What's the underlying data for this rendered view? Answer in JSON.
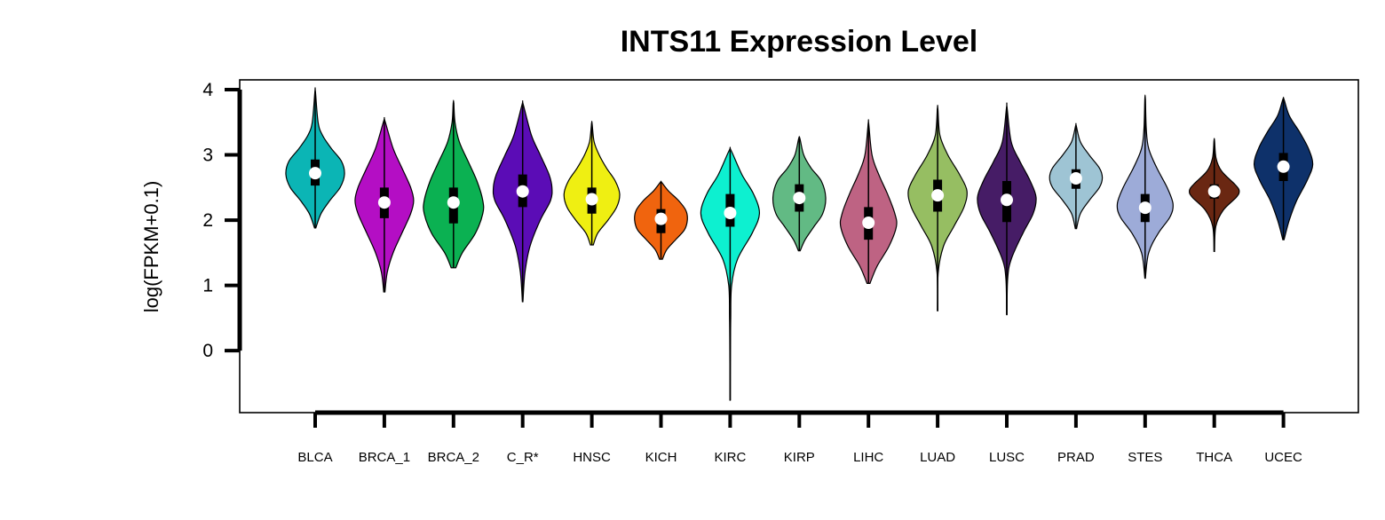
{
  "chart_data": {
    "type": "violin",
    "title": "INTS11 Expression Level",
    "ylabel": "log(FPKM+0.1)",
    "xlabel": "",
    "ylim": [
      -0.95,
      4.15
    ],
    "yticks": [
      0,
      1,
      2,
      3,
      4
    ],
    "legend": "none",
    "grid": false,
    "categories": [
      "BLCA",
      "BRCA_1",
      "BRCA_2",
      "C_R*",
      "HNSC",
      "KICH",
      "KIRC",
      "KIRP",
      "LIHC",
      "LUAD",
      "LUSC",
      "PRAD",
      "STES",
      "THCA",
      "UCEC"
    ],
    "colors": [
      "#0BB5B5",
      "#B40EC4",
      "#0BB152",
      "#5B0CB6",
      "#EFEF12",
      "#F0640E",
      "#0DF0D0",
      "#62BA84",
      "#BE6383",
      "#96BE62",
      "#461C66",
      "#9EC4D4",
      "#9DABD8",
      "#6A2712",
      "#0E316A"
    ],
    "series": [
      {
        "category": "BLCA",
        "min": 1.88,
        "max": 3.97,
        "median": 2.72,
        "q1": 2.53,
        "q3": 2.93,
        "shape": [
          [
            1.88,
            0.02
          ],
          [
            2.1,
            0.2
          ],
          [
            2.3,
            0.5
          ],
          [
            2.5,
            0.85
          ],
          [
            2.7,
            1.0
          ],
          [
            2.9,
            0.9
          ],
          [
            3.1,
            0.55
          ],
          [
            3.3,
            0.25
          ],
          [
            3.5,
            0.1
          ],
          [
            3.97,
            0.01
          ]
        ]
      },
      {
        "category": "BRCA_1",
        "min": 0.9,
        "max": 3.52,
        "median": 2.27,
        "q1": 2.03,
        "q3": 2.5,
        "shape": [
          [
            0.9,
            0.02
          ],
          [
            1.2,
            0.1
          ],
          [
            1.5,
            0.3
          ],
          [
            1.8,
            0.6
          ],
          [
            2.1,
            0.9
          ],
          [
            2.3,
            1.0
          ],
          [
            2.5,
            0.9
          ],
          [
            2.8,
            0.6
          ],
          [
            3.1,
            0.3
          ],
          [
            3.52,
            0.02
          ]
        ]
      },
      {
        "category": "BRCA_2",
        "min": 1.27,
        "max": 3.8,
        "median": 2.27,
        "q1": 1.95,
        "q3": 2.5,
        "shape": [
          [
            1.27,
            0.08
          ],
          [
            1.5,
            0.3
          ],
          [
            1.8,
            0.75
          ],
          [
            2.1,
            1.0
          ],
          [
            2.3,
            1.0
          ],
          [
            2.6,
            0.8
          ],
          [
            2.9,
            0.5
          ],
          [
            3.2,
            0.2
          ],
          [
            3.5,
            0.05
          ],
          [
            3.8,
            0.01
          ]
        ]
      },
      {
        "category": "C_R*",
        "min": 0.75,
        "max": 3.77,
        "median": 2.44,
        "q1": 2.2,
        "q3": 2.7,
        "shape": [
          [
            0.75,
            0.01
          ],
          [
            1.2,
            0.08
          ],
          [
            1.6,
            0.25
          ],
          [
            2.0,
            0.6
          ],
          [
            2.3,
            0.95
          ],
          [
            2.5,
            1.0
          ],
          [
            2.7,
            0.9
          ],
          [
            3.0,
            0.6
          ],
          [
            3.3,
            0.3
          ],
          [
            3.77,
            0.02
          ]
        ]
      },
      {
        "category": "HNSC",
        "min": 1.62,
        "max": 3.48,
        "median": 2.32,
        "q1": 2.1,
        "q3": 2.5,
        "shape": [
          [
            1.62,
            0.05
          ],
          [
            1.8,
            0.2
          ],
          [
            2.0,
            0.55
          ],
          [
            2.2,
            0.85
          ],
          [
            2.4,
            0.95
          ],
          [
            2.6,
            0.8
          ],
          [
            2.8,
            0.5
          ],
          [
            3.0,
            0.25
          ],
          [
            3.2,
            0.08
          ],
          [
            3.48,
            0.01
          ]
        ]
      },
      {
        "category": "KICH",
        "min": 1.4,
        "max": 2.58,
        "median": 2.02,
        "q1": 1.8,
        "q3": 2.17,
        "shape": [
          [
            1.4,
            0.05
          ],
          [
            1.55,
            0.2
          ],
          [
            1.7,
            0.5
          ],
          [
            1.85,
            0.8
          ],
          [
            2.0,
            0.9
          ],
          [
            2.15,
            0.85
          ],
          [
            2.3,
            0.6
          ],
          [
            2.45,
            0.25
          ],
          [
            2.58,
            0.02
          ]
        ]
      },
      {
        "category": "KIRC",
        "min": -0.76,
        "max": 3.07,
        "median": 2.11,
        "q1": 1.9,
        "q3": 2.4,
        "shape": [
          [
            -0.76,
            0.005
          ],
          [
            -0.2,
            0.01
          ],
          [
            0.5,
            0.02
          ],
          [
            1.0,
            0.05
          ],
          [
            1.4,
            0.25
          ],
          [
            1.8,
            0.75
          ],
          [
            2.1,
            1.0
          ],
          [
            2.4,
            0.8
          ],
          [
            2.7,
            0.4
          ],
          [
            3.07,
            0.03
          ]
        ]
      },
      {
        "category": "KIRP",
        "min": 1.53,
        "max": 3.25,
        "median": 2.34,
        "q1": 2.13,
        "q3": 2.55,
        "shape": [
          [
            1.53,
            0.03
          ],
          [
            1.7,
            0.2
          ],
          [
            1.9,
            0.5
          ],
          [
            2.1,
            0.8
          ],
          [
            2.35,
            0.9
          ],
          [
            2.6,
            0.75
          ],
          [
            2.8,
            0.4
          ],
          [
            3.0,
            0.15
          ],
          [
            3.25,
            0.02
          ]
        ]
      },
      {
        "category": "LIHC",
        "min": 1.03,
        "max": 3.48,
        "median": 1.96,
        "q1": 1.7,
        "q3": 2.2,
        "shape": [
          [
            1.03,
            0.05
          ],
          [
            1.3,
            0.3
          ],
          [
            1.6,
            0.7
          ],
          [
            1.9,
            0.95
          ],
          [
            2.1,
            0.9
          ],
          [
            2.4,
            0.65
          ],
          [
            2.7,
            0.35
          ],
          [
            3.0,
            0.12
          ],
          [
            3.48,
            0.01
          ]
        ]
      },
      {
        "category": "LUAD",
        "min": 0.61,
        "max": 3.71,
        "median": 2.38,
        "q1": 2.13,
        "q3": 2.62,
        "shape": [
          [
            0.61,
            0.005
          ],
          [
            1.2,
            0.02
          ],
          [
            1.6,
            0.2
          ],
          [
            1.9,
            0.55
          ],
          [
            2.2,
            0.9
          ],
          [
            2.45,
            1.0
          ],
          [
            2.7,
            0.75
          ],
          [
            3.0,
            0.35
          ],
          [
            3.3,
            0.08
          ],
          [
            3.71,
            0.01
          ]
        ]
      },
      {
        "category": "LUSC",
        "min": 0.55,
        "max": 3.73,
        "median": 2.31,
        "q1": 1.97,
        "q3": 2.6,
        "shape": [
          [
            0.55,
            0.005
          ],
          [
            1.1,
            0.03
          ],
          [
            1.4,
            0.15
          ],
          [
            1.8,
            0.55
          ],
          [
            2.1,
            0.9
          ],
          [
            2.35,
            1.0
          ],
          [
            2.6,
            0.8
          ],
          [
            2.9,
            0.45
          ],
          [
            3.2,
            0.15
          ],
          [
            3.73,
            0.01
          ]
        ]
      },
      {
        "category": "PRAD",
        "min": 1.87,
        "max": 3.45,
        "median": 2.64,
        "q1": 2.48,
        "q3": 2.78,
        "shape": [
          [
            1.87,
            0.02
          ],
          [
            2.1,
            0.15
          ],
          [
            2.3,
            0.45
          ],
          [
            2.5,
            0.8
          ],
          [
            2.65,
            0.9
          ],
          [
            2.8,
            0.8
          ],
          [
            3.0,
            0.45
          ],
          [
            3.2,
            0.15
          ],
          [
            3.45,
            0.01
          ]
        ]
      },
      {
        "category": "STES",
        "min": 1.11,
        "max": 3.86,
        "median": 2.19,
        "q1": 1.97,
        "q3": 2.4,
        "shape": [
          [
            1.11,
            0.01
          ],
          [
            1.5,
            0.12
          ],
          [
            1.8,
            0.45
          ],
          [
            2.05,
            0.85
          ],
          [
            2.25,
            0.95
          ],
          [
            2.5,
            0.75
          ],
          [
            2.8,
            0.4
          ],
          [
            3.1,
            0.12
          ],
          [
            3.4,
            0.04
          ],
          [
            3.86,
            0.01
          ]
        ]
      },
      {
        "category": "THCA",
        "min": 1.52,
        "max": 3.22,
        "median": 2.44,
        "q1": 2.33,
        "q3": 2.55,
        "shape": [
          [
            1.52,
            0.01
          ],
          [
            1.9,
            0.05
          ],
          [
            2.15,
            0.3
          ],
          [
            2.35,
            0.75
          ],
          [
            2.45,
            0.85
          ],
          [
            2.55,
            0.7
          ],
          [
            2.75,
            0.25
          ],
          [
            2.95,
            0.06
          ],
          [
            3.22,
            0.01
          ]
        ]
      },
      {
        "category": "UCEC",
        "min": 1.7,
        "max": 3.85,
        "median": 2.82,
        "q1": 2.6,
        "q3": 3.03,
        "shape": [
          [
            1.7,
            0.02
          ],
          [
            2.0,
            0.2
          ],
          [
            2.3,
            0.45
          ],
          [
            2.6,
            0.8
          ],
          [
            2.85,
            1.0
          ],
          [
            3.1,
            0.85
          ],
          [
            3.35,
            0.55
          ],
          [
            3.6,
            0.2
          ],
          [
            3.85,
            0.02
          ]
        ]
      }
    ]
  }
}
